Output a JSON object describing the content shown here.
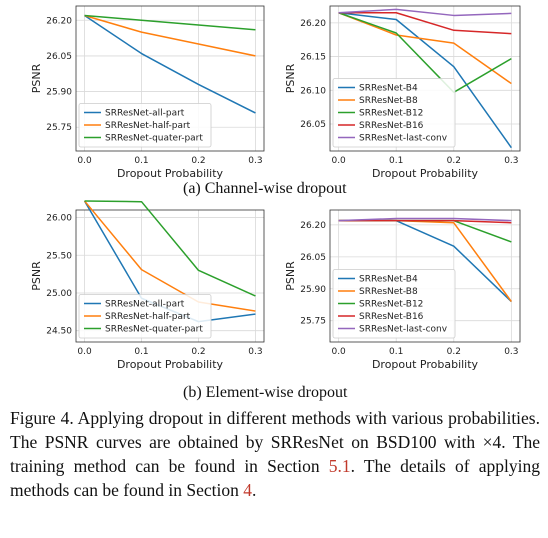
{
  "colors": {
    "blue": "#1f77b4",
    "orange": "#ff7f0e",
    "green": "#2ca02c",
    "red": "#d62728",
    "purple": "#9467bd",
    "grid": "#d9d9d9",
    "ref_red": "#c0392b"
  },
  "subcaptions": {
    "a": "(a) Channel-wise dropout",
    "b": "(b) Element-wise dropout"
  },
  "caption": {
    "lead": "Figure 4.  Applying dropout in different methods with various probabilities.  The PSNR curves are obtained by SRResNet on BSD100 with ×4.  The training method can be found in Section ",
    "ref1": "5.1",
    "mid": ".  The details of applying methods can be found in Section ",
    "ref2": "4",
    "tail": "."
  },
  "chart_data": [
    {
      "type": "line",
      "grid": true,
      "legend": "lower-left",
      "xlabel": "Dropout Probability",
      "ylabel": "PSNR",
      "x": [
        0.0,
        0.1,
        0.2,
        0.3
      ],
      "xticks": [
        "0.0",
        "0.1",
        "0.2",
        "0.3"
      ],
      "ylim": [
        25.65,
        26.26
      ],
      "yticks": [
        25.75,
        25.9,
        26.05,
        26.2
      ],
      "ytick_labels": [
        "25.75",
        "25.90",
        "26.05",
        "26.20"
      ],
      "series": [
        {
          "name": "SRResNet-all-part",
          "color": "#1f77b4",
          "values": [
            26.22,
            26.06,
            25.93,
            25.81
          ]
        },
        {
          "name": "SRResNet-half-part",
          "color": "#ff7f0e",
          "values": [
            26.22,
            26.15,
            26.1,
            26.05
          ]
        },
        {
          "name": "SRResNet-quater-part",
          "color": "#2ca02c",
          "values": [
            26.22,
            26.2,
            26.18,
            26.16
          ]
        }
      ]
    },
    {
      "type": "line",
      "grid": true,
      "legend": "lower-left",
      "xlabel": "Dropout Probability",
      "ylabel": "PSNR",
      "x": [
        0.0,
        0.1,
        0.2,
        0.3
      ],
      "xticks": [
        "0.0",
        "0.1",
        "0.2",
        "0.3"
      ],
      "ylim": [
        26.01,
        26.225
      ],
      "yticks": [
        26.05,
        26.1,
        26.15,
        26.2
      ],
      "ytick_labels": [
        "26.05",
        "26.10",
        "26.15",
        "26.20"
      ],
      "series": [
        {
          "name": "SRResNet-B4",
          "color": "#1f77b4",
          "values": [
            26.215,
            26.205,
            26.135,
            26.015
          ]
        },
        {
          "name": "SRResNet-B8",
          "color": "#ff7f0e",
          "values": [
            26.215,
            26.182,
            26.17,
            26.11
          ]
        },
        {
          "name": "SRResNet-B12",
          "color": "#2ca02c",
          "values": [
            26.215,
            26.185,
            26.097,
            26.147
          ]
        },
        {
          "name": "SRResNet-B16",
          "color": "#d62728",
          "values": [
            26.215,
            26.215,
            26.189,
            26.184
          ]
        },
        {
          "name": "SRResNet-last-conv",
          "color": "#9467bd",
          "values": [
            26.215,
            26.22,
            26.211,
            26.214
          ]
        }
      ]
    },
    {
      "type": "line",
      "grid": true,
      "legend": "lower-left",
      "xlabel": "Dropout Probability",
      "ylabel": "PSNR",
      "x": [
        0.0,
        0.1,
        0.2,
        0.3
      ],
      "xticks": [
        "0.0",
        "0.1",
        "0.2",
        "0.3"
      ],
      "ylim": [
        24.35,
        26.1
      ],
      "yticks": [
        24.5,
        25.0,
        25.5,
        26.0
      ],
      "ytick_labels": [
        "24.50",
        "25.00",
        "25.50",
        "26.00"
      ],
      "series": [
        {
          "name": "SRResNet-all-part",
          "color": "#1f77b4",
          "values": [
            26.22,
            24.93,
            24.62,
            24.72
          ]
        },
        {
          "name": "SRResNet-half-part",
          "color": "#ff7f0e",
          "values": [
            26.22,
            25.31,
            24.88,
            24.76
          ]
        },
        {
          "name": "SRResNet-quater-part",
          "color": "#2ca02c",
          "values": [
            26.22,
            26.21,
            25.3,
            24.96
          ]
        }
      ]
    },
    {
      "type": "line",
      "grid": true,
      "legend": "lower-left",
      "xlabel": "Dropout Probability",
      "ylabel": "PSNR",
      "x": [
        0.0,
        0.1,
        0.2,
        0.3
      ],
      "xticks": [
        "0.0",
        "0.1",
        "0.2",
        "0.3"
      ],
      "ylim": [
        25.65,
        26.27
      ],
      "yticks": [
        25.75,
        25.9,
        26.05,
        26.2
      ],
      "ytick_labels": [
        "25.75",
        "25.90",
        "26.05",
        "26.20"
      ],
      "series": [
        {
          "name": "SRResNet-B4",
          "color": "#1f77b4",
          "values": [
            26.22,
            26.22,
            26.1,
            25.84
          ]
        },
        {
          "name": "SRResNet-B8",
          "color": "#ff7f0e",
          "values": [
            26.22,
            26.22,
            26.21,
            25.84
          ]
        },
        {
          "name": "SRResNet-B12",
          "color": "#2ca02c",
          "values": [
            26.22,
            26.22,
            26.22,
            26.12
          ]
        },
        {
          "name": "SRResNet-B16",
          "color": "#d62728",
          "values": [
            26.22,
            26.22,
            26.22,
            26.21
          ]
        },
        {
          "name": "SRResNet-last-conv",
          "color": "#9467bd",
          "values": [
            26.22,
            26.23,
            26.23,
            26.22
          ]
        }
      ]
    }
  ]
}
